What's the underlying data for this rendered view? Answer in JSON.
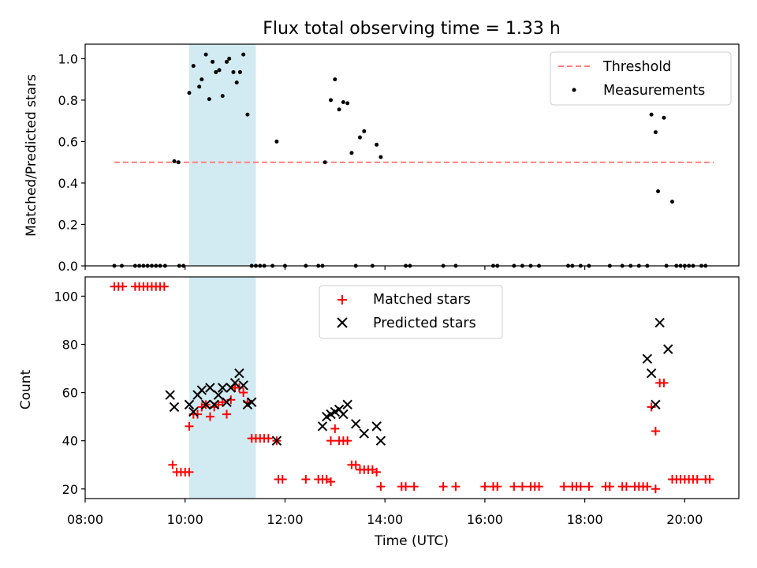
{
  "chart_data": [
    {
      "type": "scatter",
      "title": "Flux total observing time = 1.33 h",
      "ylabel": "Matched/Predicted stars",
      "xlim": [
        "08:00",
        "21:05"
      ],
      "ylim": [
        0,
        1.07
      ],
      "yticks": [
        "0.0",
        "0.2",
        "0.4",
        "0.6",
        "0.8",
        "1.0"
      ],
      "grid": false,
      "legend": "top-right",
      "highlight": {
        "start": "10:05",
        "end": "11:25",
        "color": "#add8e6"
      },
      "threshold": {
        "name": "Threshold",
        "value": 0.5,
        "start": "08:35",
        "end": "20:35",
        "color": "#ff7f7f"
      },
      "series": [
        {
          "name": "Measurements",
          "color": "#000000",
          "points": [
            [
              "08:35",
              0
            ],
            [
              "08:44",
              0
            ],
            [
              "09:00",
              0
            ],
            [
              "09:05",
              0
            ],
            [
              "09:10",
              0
            ],
            [
              "09:15",
              0
            ],
            [
              "09:20",
              0
            ],
            [
              "09:25",
              0
            ],
            [
              "09:30",
              0
            ],
            [
              "09:36",
              0
            ],
            [
              "09:47",
              0.505
            ],
            [
              "09:52",
              0.5
            ],
            [
              "09:53",
              0
            ],
            [
              "09:58",
              0
            ],
            [
              "10:05",
              0.835
            ],
            [
              "10:10",
              0.965
            ],
            [
              "10:17",
              0.865
            ],
            [
              "10:20",
              0.9
            ],
            [
              "10:25",
              1.02
            ],
            [
              "10:29",
              0.805
            ],
            [
              "10:33",
              0.985
            ],
            [
              "10:37",
              0.935
            ],
            [
              "10:41",
              0.945
            ],
            [
              "10:45",
              0.82
            ],
            [
              "10:50",
              0.985
            ],
            [
              "10:53",
              1.0
            ],
            [
              "10:58",
              0.935
            ],
            [
              "11:02",
              0.885
            ],
            [
              "11:06",
              0.935
            ],
            [
              "11:10",
              1.02
            ],
            [
              "11:15",
              0.73
            ],
            [
              "11:20",
              0
            ],
            [
              "11:25",
              0
            ],
            [
              "11:30",
              0
            ],
            [
              "11:35",
              0
            ],
            [
              "11:45",
              0
            ],
            [
              "11:50",
              0.6
            ],
            [
              "12:00",
              0
            ],
            [
              "12:25",
              0
            ],
            [
              "12:40",
              0
            ],
            [
              "12:45",
              0
            ],
            [
              "12:48",
              0.5
            ],
            [
              "12:55",
              0.8
            ],
            [
              "13:00",
              0.9
            ],
            [
              "13:05",
              0.755
            ],
            [
              "13:10",
              0.79
            ],
            [
              "13:15",
              0.785
            ],
            [
              "13:20",
              0.545
            ],
            [
              "13:25",
              0
            ],
            [
              "13:30",
              0.62
            ],
            [
              "13:35",
              0.65
            ],
            [
              "13:45",
              0
            ],
            [
              "13:50",
              0.585
            ],
            [
              "13:55",
              0.525
            ],
            [
              "14:25",
              0
            ],
            [
              "14:30",
              0
            ],
            [
              "15:10",
              0
            ],
            [
              "15:25",
              0
            ],
            [
              "16:10",
              0
            ],
            [
              "16:15",
              0
            ],
            [
              "16:35",
              0
            ],
            [
              "16:45",
              0
            ],
            [
              "16:55",
              0
            ],
            [
              "17:05",
              0
            ],
            [
              "17:40",
              0
            ],
            [
              "17:45",
              0
            ],
            [
              "17:55",
              0
            ],
            [
              "18:05",
              0
            ],
            [
              "18:30",
              0
            ],
            [
              "18:45",
              0
            ],
            [
              "18:55",
              0
            ],
            [
              "19:05",
              0
            ],
            [
              "19:15",
              0
            ],
            [
              "19:20",
              0.73
            ],
            [
              "19:25",
              0.645
            ],
            [
              "19:28",
              0.36
            ],
            [
              "19:35",
              0.715
            ],
            [
              "19:38",
              0
            ],
            [
              "19:45",
              0.31
            ],
            [
              "19:50",
              0
            ],
            [
              "19:55",
              0
            ],
            [
              "20:00",
              0
            ],
            [
              "20:05",
              0
            ],
            [
              "20:10",
              0
            ],
            [
              "20:20",
              0
            ],
            [
              "20:25",
              0
            ]
          ]
        }
      ]
    },
    {
      "type": "scatter",
      "xlabel": "Time (UTC)",
      "ylabel": "Count",
      "xlim": [
        "08:00",
        "21:05"
      ],
      "ylim": [
        16,
        108
      ],
      "xticks": [
        "08:00",
        "10:00",
        "12:00",
        "14:00",
        "16:00",
        "18:00",
        "20:00"
      ],
      "yticks": [
        "20",
        "40",
        "60",
        "80",
        "100"
      ],
      "grid": false,
      "legend": "top-center",
      "highlight": {
        "start": "10:05",
        "end": "11:25",
        "color": "#add8e6"
      },
      "series": [
        {
          "name": "Matched stars",
          "marker": "+",
          "color": "#ff0000",
          "points": [
            [
              "08:35",
              104
            ],
            [
              "08:40",
              104
            ],
            [
              "08:45",
              104
            ],
            [
              "09:00",
              104
            ],
            [
              "09:05",
              104
            ],
            [
              "09:10",
              104
            ],
            [
              "09:15",
              104
            ],
            [
              "09:20",
              104
            ],
            [
              "09:25",
              104
            ],
            [
              "09:30",
              104
            ],
            [
              "09:35",
              104
            ],
            [
              "09:45",
              30
            ],
            [
              "09:50",
              27
            ],
            [
              "09:55",
              27
            ],
            [
              "10:00",
              27
            ],
            [
              "10:05",
              27
            ],
            [
              "10:05",
              46
            ],
            [
              "10:10",
              51
            ],
            [
              "10:15",
              51
            ],
            [
              "10:20",
              54
            ],
            [
              "10:25",
              55
            ],
            [
              "10:30",
              50
            ],
            [
              "10:35",
              54
            ],
            [
              "10:40",
              55
            ],
            [
              "10:45",
              56
            ],
            [
              "10:50",
              51
            ],
            [
              "10:55",
              57
            ],
            [
              "11:00",
              62
            ],
            [
              "11:05",
              62
            ],
            [
              "11:10",
              60
            ],
            [
              "11:15",
              56
            ],
            [
              "11:20",
              41
            ],
            [
              "11:25",
              41
            ],
            [
              "11:30",
              41
            ],
            [
              "11:35",
              41
            ],
            [
              "11:40",
              41
            ],
            [
              "11:50",
              40
            ],
            [
              "11:52",
              24
            ],
            [
              "11:57",
              24
            ],
            [
              "12:25",
              24
            ],
            [
              "12:40",
              24
            ],
            [
              "12:45",
              24
            ],
            [
              "12:50",
              24
            ],
            [
              "12:55",
              23
            ],
            [
              "12:55",
              40
            ],
            [
              "13:00",
              45
            ],
            [
              "13:05",
              40
            ],
            [
              "13:10",
              40
            ],
            [
              "13:15",
              40
            ],
            [
              "13:20",
              30
            ],
            [
              "13:25",
              30
            ],
            [
              "13:30",
              28
            ],
            [
              "13:35",
              28
            ],
            [
              "13:40",
              28
            ],
            [
              "13:45",
              28
            ],
            [
              "13:50",
              27
            ],
            [
              "13:55",
              21
            ],
            [
              "14:20",
              21
            ],
            [
              "14:25",
              21
            ],
            [
              "14:35",
              21
            ],
            [
              "15:10",
              21
            ],
            [
              "15:25",
              21
            ],
            [
              "16:00",
              21
            ],
            [
              "16:10",
              21
            ],
            [
              "16:15",
              21
            ],
            [
              "16:35",
              21
            ],
            [
              "16:45",
              21
            ],
            [
              "16:55",
              21
            ],
            [
              "17:00",
              21
            ],
            [
              "17:05",
              21
            ],
            [
              "17:35",
              21
            ],
            [
              "17:45",
              21
            ],
            [
              "17:50",
              21
            ],
            [
              "17:55",
              21
            ],
            [
              "18:05",
              21
            ],
            [
              "18:25",
              21
            ],
            [
              "18:30",
              21
            ],
            [
              "18:45",
              21
            ],
            [
              "18:50",
              21
            ],
            [
              "19:00",
              21
            ],
            [
              "19:05",
              21
            ],
            [
              "19:10",
              21
            ],
            [
              "19:15",
              21
            ],
            [
              "19:25",
              20
            ],
            [
              "19:20",
              54
            ],
            [
              "19:25",
              44
            ],
            [
              "19:30",
              64
            ],
            [
              "19:35",
              64
            ],
            [
              "19:45",
              24
            ],
            [
              "19:50",
              24
            ],
            [
              "19:55",
              24
            ],
            [
              "20:00",
              24
            ],
            [
              "20:05",
              24
            ],
            [
              "20:10",
              24
            ],
            [
              "20:15",
              24
            ],
            [
              "20:25",
              24
            ],
            [
              "20:30",
              24
            ]
          ]
        },
        {
          "name": "Predicted stars",
          "marker": "x",
          "color": "#000000",
          "points": [
            [
              "09:42",
              59
            ],
            [
              "09:47",
              54
            ],
            [
              "10:05",
              55
            ],
            [
              "10:10",
              52
            ],
            [
              "10:15",
              59
            ],
            [
              "10:20",
              61
            ],
            [
              "10:25",
              55
            ],
            [
              "10:30",
              62
            ],
            [
              "10:35",
              55
            ],
            [
              "10:40",
              59
            ],
            [
              "10:45",
              62
            ],
            [
              "10:50",
              56
            ],
            [
              "10:55",
              62
            ],
            [
              "11:00",
              64
            ],
            [
              "11:05",
              68
            ],
            [
              "11:10",
              63
            ],
            [
              "11:15",
              55
            ],
            [
              "11:20",
              56
            ],
            [
              "11:50",
              40
            ],
            [
              "12:45",
              46
            ],
            [
              "12:50",
              50
            ],
            [
              "12:55",
              51
            ],
            [
              "13:00",
              52
            ],
            [
              "13:05",
              53
            ],
            [
              "13:10",
              51
            ],
            [
              "13:15",
              55
            ],
            [
              "13:25",
              47
            ],
            [
              "13:35",
              43
            ],
            [
              "13:50",
              46
            ],
            [
              "13:55",
              40
            ],
            [
              "19:15",
              74
            ],
            [
              "19:20",
              68
            ],
            [
              "19:25",
              55
            ],
            [
              "19:30",
              89
            ],
            [
              "19:40",
              78
            ]
          ]
        }
      ]
    }
  ]
}
